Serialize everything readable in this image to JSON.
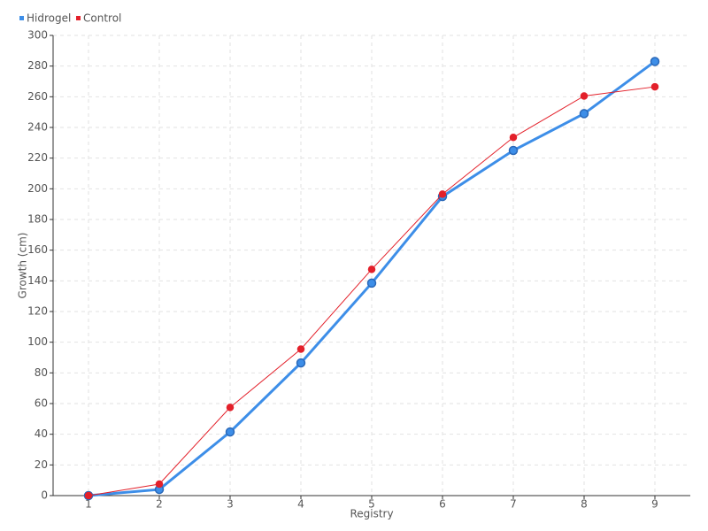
{
  "chart_data": {
    "type": "line",
    "x": [
      1,
      2,
      3,
      4,
      5,
      6,
      7,
      8,
      9
    ],
    "series": [
      {
        "name": "Hidrogel",
        "color": "#3d8ee8",
        "values": [
          0,
          4,
          41.5,
          86.5,
          138.5,
          195,
          225,
          249,
          283
        ]
      },
      {
        "name": "Control",
        "color": "#e3202a",
        "values": [
          0,
          7.5,
          57.5,
          95.5,
          147.5,
          196.5,
          233.5,
          260.5,
          266.5
        ]
      }
    ],
    "xlabel": "Registry",
    "ylabel": "Growth (cm)",
    "xlim": [
      0.5,
      9.5
    ],
    "xticks": [
      1,
      2,
      3,
      4,
      5,
      6,
      7,
      8,
      9
    ],
    "ylim": [
      0,
      300
    ],
    "yticks": [
      0,
      20,
      40,
      60,
      80,
      100,
      120,
      140,
      160,
      180,
      200,
      220,
      240,
      260,
      280,
      300
    ],
    "grid": true,
    "legend": "top-left"
  }
}
